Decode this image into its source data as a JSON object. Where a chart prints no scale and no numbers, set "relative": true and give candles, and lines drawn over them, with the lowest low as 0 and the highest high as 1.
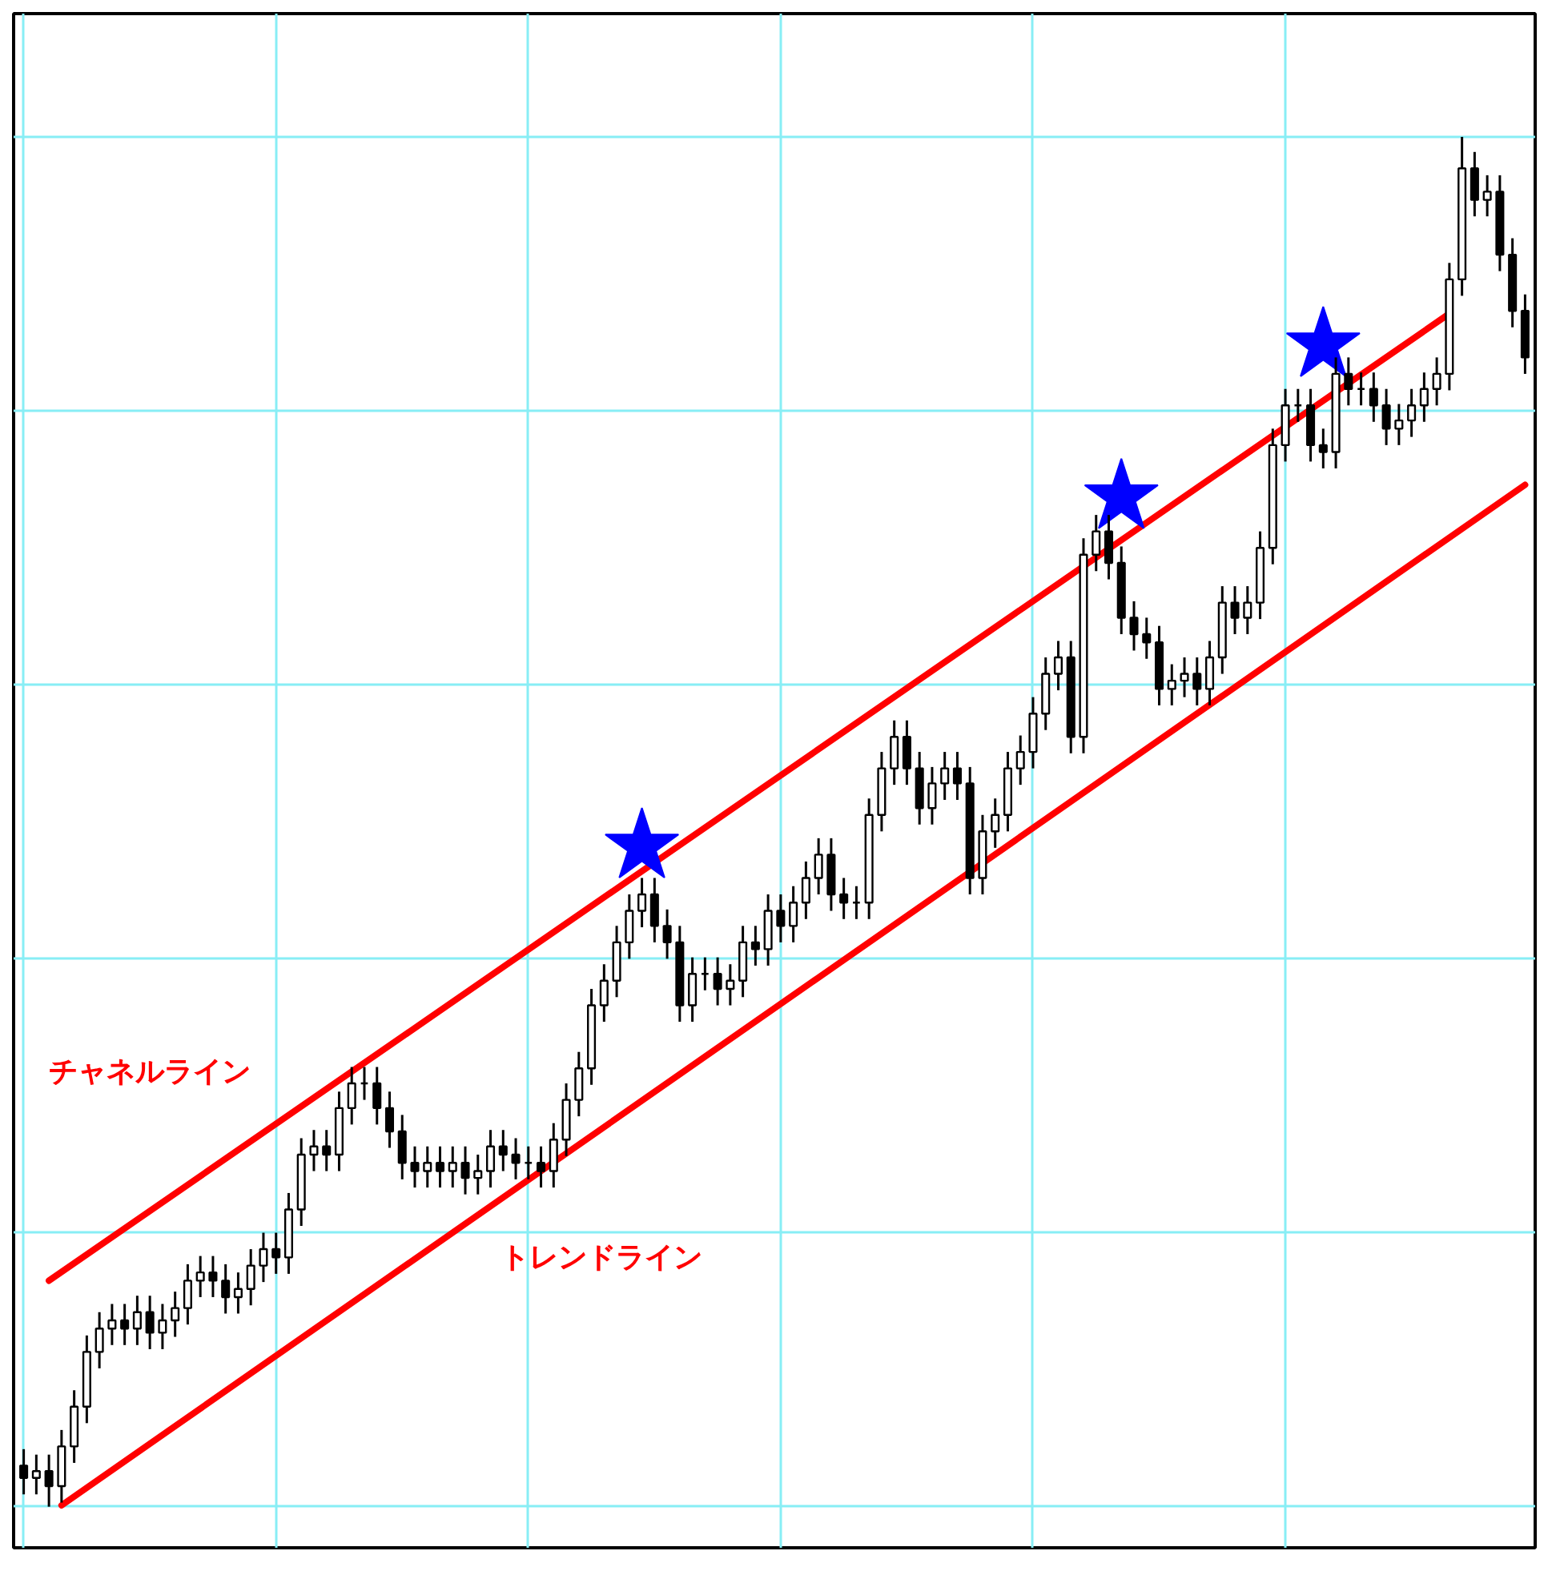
{
  "chart_data": {
    "type": "candlestick",
    "relative": true,
    "grid": true,
    "color": "#000000",
    "categories": [
      null,
      null,
      null,
      null,
      null,
      null,
      null,
      null,
      null,
      null,
      null,
      null,
      null,
      null,
      null,
      null,
      null,
      null,
      null,
      null,
      null,
      null,
      null,
      null,
      null,
      null,
      null,
      null,
      null,
      null,
      null,
      null,
      null,
      null,
      null,
      null,
      null,
      null,
      null,
      null,
      null,
      null,
      null,
      null,
      null,
      null,
      null,
      null,
      null,
      null,
      null,
      null,
      null,
      null,
      null,
      null,
      null,
      null,
      null,
      null,
      null,
      null,
      null,
      null,
      null,
      null,
      null,
      null,
      null,
      null,
      null,
      null,
      null,
      null,
      null,
      null,
      null,
      null,
      null,
      null,
      null,
      null,
      null,
      null,
      null,
      null,
      null,
      null,
      null,
      null,
      null,
      null,
      null,
      null,
      null,
      null,
      null,
      null,
      null,
      null,
      null,
      null,
      null,
      null,
      null,
      null,
      null,
      null,
      null,
      null,
      null,
      null,
      null,
      null,
      null,
      null,
      null,
      null,
      null,
      null
    ],
    "ohlc": [
      [
        0.03,
        0.042,
        0.009,
        0.021
      ],
      [
        0.021,
        0.038,
        0.009,
        0.026
      ],
      [
        0.026,
        0.038,
        0.0,
        0.015
      ],
      [
        0.015,
        0.056,
        0.003,
        0.044
      ],
      [
        0.044,
        0.085,
        0.032,
        0.073
      ],
      [
        0.073,
        0.125,
        0.061,
        0.113
      ],
      [
        0.113,
        0.142,
        0.101,
        0.13
      ],
      [
        0.13,
        0.148,
        0.118,
        0.136
      ],
      [
        0.136,
        0.148,
        0.118,
        0.13
      ],
      [
        0.13,
        0.154,
        0.118,
        0.142
      ],
      [
        0.142,
        0.154,
        0.115,
        0.127
      ],
      [
        0.127,
        0.148,
        0.115,
        0.136
      ],
      [
        0.136,
        0.157,
        0.124,
        0.145
      ],
      [
        0.145,
        0.177,
        0.133,
        0.165
      ],
      [
        0.165,
        0.183,
        0.153,
        0.171
      ],
      [
        0.171,
        0.183,
        0.153,
        0.165
      ],
      [
        0.165,
        0.177,
        0.141,
        0.153
      ],
      [
        0.153,
        0.171,
        0.141,
        0.159
      ],
      [
        0.159,
        0.188,
        0.147,
        0.176
      ],
      [
        0.176,
        0.2,
        0.164,
        0.188
      ],
      [
        0.188,
        0.2,
        0.17,
        0.182
      ],
      [
        0.182,
        0.229,
        0.17,
        0.217
      ],
      [
        0.217,
        0.269,
        0.205,
        0.257
      ],
      [
        0.257,
        0.275,
        0.245,
        0.263
      ],
      [
        0.263,
        0.275,
        0.245,
        0.257
      ],
      [
        0.257,
        0.303,
        0.245,
        0.291
      ],
      [
        0.291,
        0.321,
        0.279,
        0.309
      ],
      [
        0.309,
        0.321,
        0.297,
        0.309
      ],
      [
        0.309,
        0.321,
        0.279,
        0.291
      ],
      [
        0.291,
        0.303,
        0.262,
        0.274
      ],
      [
        0.274,
        0.286,
        0.239,
        0.251
      ],
      [
        0.251,
        0.263,
        0.233,
        0.245
      ],
      [
        0.245,
        0.263,
        0.233,
        0.251
      ],
      [
        0.251,
        0.263,
        0.233,
        0.245
      ],
      [
        0.245,
        0.263,
        0.233,
        0.251
      ],
      [
        0.251,
        0.263,
        0.228,
        0.24
      ],
      [
        0.24,
        0.257,
        0.228,
        0.245
      ],
      [
        0.245,
        0.275,
        0.233,
        0.263
      ],
      [
        0.263,
        0.275,
        0.245,
        0.257
      ],
      [
        0.257,
        0.269,
        0.239,
        0.251
      ],
      [
        0.251,
        0.263,
        0.239,
        0.251
      ],
      [
        0.251,
        0.263,
        0.233,
        0.245
      ],
      [
        0.245,
        0.28,
        0.233,
        0.268
      ],
      [
        0.268,
        0.309,
        0.256,
        0.297
      ],
      [
        0.297,
        0.332,
        0.285,
        0.32
      ],
      [
        0.32,
        0.378,
        0.308,
        0.366
      ],
      [
        0.366,
        0.396,
        0.354,
        0.384
      ],
      [
        0.384,
        0.424,
        0.372,
        0.412
      ],
      [
        0.412,
        0.447,
        0.4,
        0.435
      ],
      [
        0.435,
        0.459,
        0.423,
        0.447
      ],
      [
        0.447,
        0.459,
        0.412,
        0.424
      ],
      [
        0.424,
        0.436,
        0.4,
        0.412
      ],
      [
        0.412,
        0.424,
        0.354,
        0.366
      ],
      [
        0.366,
        0.401,
        0.354,
        0.389
      ],
      [
        0.389,
        0.401,
        0.377,
        0.389
      ],
      [
        0.389,
        0.401,
        0.366,
        0.378
      ],
      [
        0.378,
        0.396,
        0.366,
        0.384
      ],
      [
        0.384,
        0.424,
        0.372,
        0.412
      ],
      [
        0.412,
        0.424,
        0.395,
        0.407
      ],
      [
        0.407,
        0.447,
        0.395,
        0.435
      ],
      [
        0.435,
        0.447,
        0.412,
        0.424
      ],
      [
        0.424,
        0.453,
        0.412,
        0.441
      ],
      [
        0.441,
        0.471,
        0.429,
        0.459
      ],
      [
        0.459,
        0.488,
        0.447,
        0.476
      ],
      [
        0.476,
        0.488,
        0.435,
        0.447
      ],
      [
        0.447,
        0.459,
        0.429,
        0.441
      ],
      [
        0.441,
        0.453,
        0.429,
        0.441
      ],
      [
        0.441,
        0.517,
        0.429,
        0.505
      ],
      [
        0.505,
        0.551,
        0.493,
        0.539
      ],
      [
        0.539,
        0.574,
        0.527,
        0.562
      ],
      [
        0.562,
        0.574,
        0.527,
        0.539
      ],
      [
        0.539,
        0.551,
        0.498,
        0.51
      ],
      [
        0.51,
        0.54,
        0.498,
        0.528
      ],
      [
        0.528,
        0.551,
        0.516,
        0.539
      ],
      [
        0.539,
        0.551,
        0.516,
        0.528
      ],
      [
        0.528,
        0.54,
        0.447,
        0.459
      ],
      [
        0.459,
        0.505,
        0.447,
        0.493
      ],
      [
        0.493,
        0.517,
        0.481,
        0.505
      ],
      [
        0.505,
        0.551,
        0.493,
        0.539
      ],
      [
        0.539,
        0.563,
        0.527,
        0.551
      ],
      [
        0.551,
        0.591,
        0.539,
        0.579
      ],
      [
        0.579,
        0.62,
        0.567,
        0.608
      ],
      [
        0.608,
        0.632,
        0.596,
        0.62
      ],
      [
        0.62,
        0.632,
        0.55,
        0.562
      ],
      [
        0.562,
        0.707,
        0.55,
        0.695
      ],
      [
        0.695,
        0.724,
        0.683,
        0.712
      ],
      [
        0.712,
        0.724,
        0.677,
        0.689
      ],
      [
        0.689,
        0.701,
        0.637,
        0.649
      ],
      [
        0.649,
        0.661,
        0.625,
        0.637
      ],
      [
        0.637,
        0.649,
        0.619,
        0.631
      ],
      [
        0.631,
        0.643,
        0.585,
        0.597
      ],
      [
        0.597,
        0.615,
        0.585,
        0.603
      ],
      [
        0.603,
        0.62,
        0.591,
        0.608
      ],
      [
        0.608,
        0.62,
        0.585,
        0.597
      ],
      [
        0.597,
        0.632,
        0.585,
        0.62
      ],
      [
        0.62,
        0.672,
        0.608,
        0.66
      ],
      [
        0.66,
        0.672,
        0.637,
        0.649
      ],
      [
        0.649,
        0.672,
        0.637,
        0.66
      ],
      [
        0.66,
        0.712,
        0.648,
        0.7
      ],
      [
        0.7,
        0.787,
        0.688,
        0.775
      ],
      [
        0.775,
        0.816,
        0.763,
        0.804
      ],
      [
        0.804,
        0.816,
        0.792,
        0.804
      ],
      [
        0.804,
        0.816,
        0.763,
        0.775
      ],
      [
        0.775,
        0.787,
        0.758,
        0.77
      ],
      [
        0.77,
        0.839,
        0.758,
        0.827
      ],
      [
        0.827,
        0.839,
        0.804,
        0.816
      ],
      [
        0.816,
        0.828,
        0.804,
        0.816
      ],
      [
        0.816,
        0.828,
        0.792,
        0.804
      ],
      [
        0.804,
        0.816,
        0.775,
        0.787
      ],
      [
        0.787,
        0.805,
        0.775,
        0.793
      ],
      [
        0.793,
        0.816,
        0.781,
        0.804
      ],
      [
        0.804,
        0.828,
        0.792,
        0.816
      ],
      [
        0.816,
        0.839,
        0.804,
        0.827
      ],
      [
        0.827,
        0.908,
        0.815,
        0.896
      ],
      [
        0.896,
        1.0,
        0.884,
        0.977
      ],
      [
        0.977,
        0.989,
        0.942,
        0.954
      ],
      [
        0.954,
        0.972,
        0.942,
        0.96
      ],
      [
        0.96,
        0.972,
        0.902,
        0.914
      ],
      [
        0.914,
        0.926,
        0.861,
        0.873
      ],
      [
        0.873,
        0.885,
        0.827,
        0.839
      ]
    ],
    "series": [
      {
        "type": "line",
        "name": "チャネルライン",
        "color": "#ff0000",
        "values": [
          null,
          null,
          0.165,
          null,
          null,
          null,
          null,
          null,
          null,
          null,
          null,
          null,
          null,
          null,
          null,
          null,
          null,
          null,
          null,
          null,
          null,
          null,
          null,
          null,
          null,
          null,
          null,
          null,
          null,
          null,
          null,
          null,
          null,
          null,
          null,
          null,
          null,
          null,
          null,
          null,
          null,
          null,
          null,
          null,
          null,
          null,
          null,
          null,
          null,
          null,
          null,
          null,
          null,
          null,
          null,
          null,
          null,
          null,
          null,
          null,
          null,
          null,
          null,
          null,
          null,
          null,
          null,
          null,
          null,
          null,
          null,
          null,
          null,
          null,
          null,
          null,
          null,
          null,
          null,
          null,
          null,
          null,
          null,
          null,
          null,
          null,
          null,
          null,
          null,
          null,
          null,
          null,
          null,
          null,
          null,
          null,
          null,
          null,
          null,
          null,
          null,
          null,
          null,
          null,
          null,
          null,
          null,
          null,
          null,
          null,
          null,
          null,
          null,
          0.871,
          null,
          null,
          null,
          null,
          null,
          null
        ]
      },
      {
        "type": "line",
        "name": "トレンドライン",
        "color": "#ff0000",
        "values": [
          null,
          null,
          null,
          0.001,
          null,
          null,
          null,
          null,
          null,
          null,
          null,
          null,
          null,
          null,
          null,
          null,
          null,
          null,
          null,
          null,
          null,
          null,
          null,
          null,
          null,
          null,
          null,
          null,
          null,
          null,
          null,
          null,
          null,
          null,
          null,
          null,
          null,
          null,
          null,
          null,
          null,
          null,
          null,
          null,
          null,
          null,
          null,
          null,
          null,
          null,
          null,
          null,
          null,
          null,
          null,
          null,
          null,
          null,
          null,
          null,
          null,
          null,
          null,
          null,
          null,
          null,
          null,
          null,
          null,
          null,
          null,
          null,
          null,
          null,
          null,
          null,
          null,
          null,
          null,
          null,
          null,
          null,
          null,
          null,
          null,
          null,
          null,
          null,
          null,
          null,
          null,
          null,
          null,
          null,
          null,
          null,
          null,
          null,
          null,
          null,
          null,
          null,
          null,
          null,
          null,
          null,
          null,
          null,
          null,
          null,
          null,
          null,
          null,
          null,
          null,
          null,
          null,
          null,
          null,
          0.746
        ]
      },
      {
        "type": "scatter",
        "marker": "star",
        "color": "#0000ff",
        "values": [
          null,
          null,
          null,
          null,
          null,
          null,
          null,
          null,
          null,
          null,
          null,
          null,
          null,
          null,
          null,
          null,
          null,
          null,
          null,
          null,
          null,
          null,
          null,
          null,
          null,
          null,
          null,
          null,
          null,
          null,
          null,
          null,
          null,
          null,
          null,
          null,
          null,
          null,
          null,
          null,
          null,
          null,
          null,
          null,
          null,
          null,
          null,
          null,
          null,
          0.482,
          null,
          null,
          null,
          null,
          null,
          null,
          null,
          null,
          null,
          null,
          null,
          null,
          null,
          null,
          null,
          null,
          null,
          null,
          null,
          null,
          null,
          null,
          null,
          null,
          null,
          null,
          null,
          null,
          null,
          null,
          null,
          null,
          null,
          null,
          null,
          null,
          null,
          0.737,
          null,
          null,
          null,
          null,
          null,
          null,
          null,
          null,
          null,
          null,
          null,
          null,
          null,
          null,
          null,
          0.848,
          null,
          null,
          null,
          null,
          null,
          null,
          null,
          null,
          null,
          null,
          null,
          null,
          null,
          null,
          null,
          null
        ]
      }
    ]
  }
}
